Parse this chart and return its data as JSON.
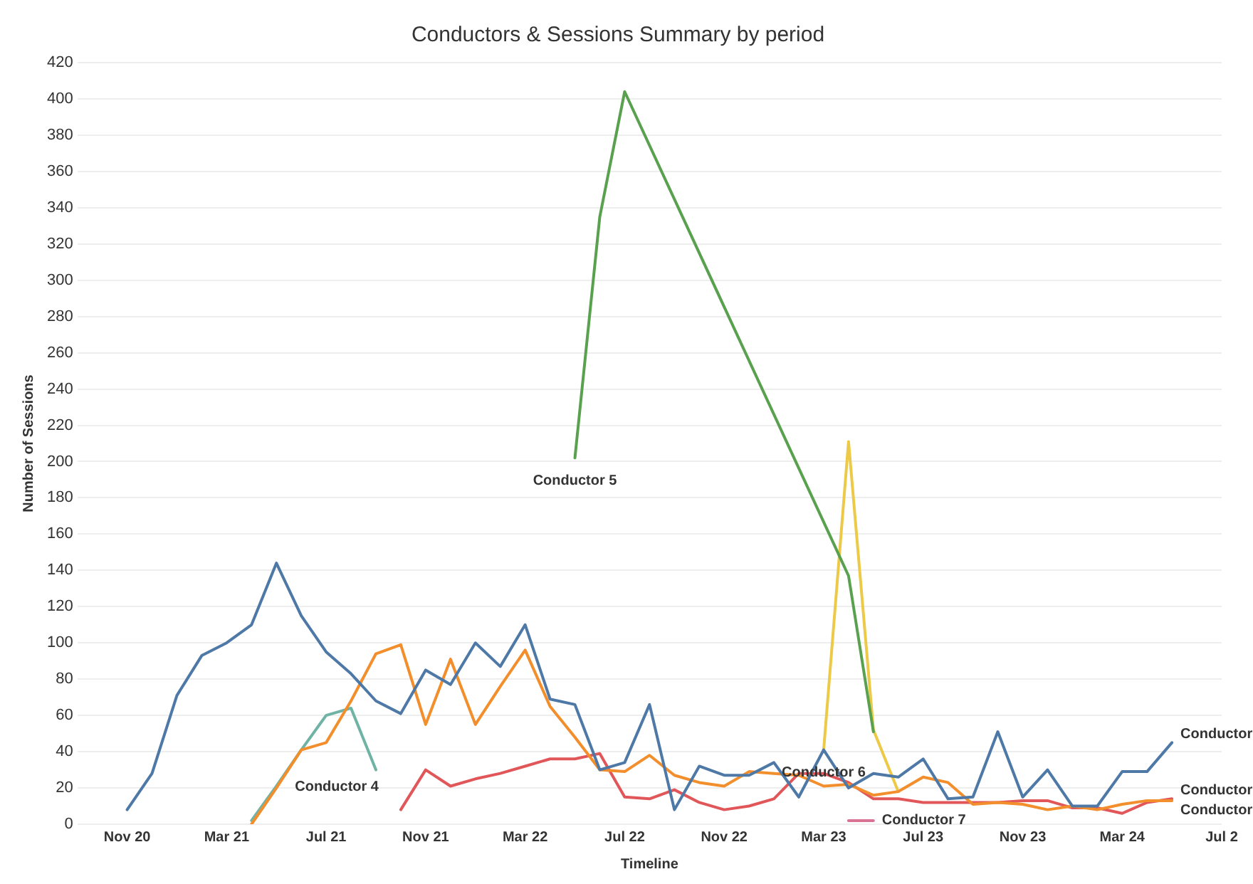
{
  "chart_data": {
    "type": "line",
    "title": "Conductors & Sessions Summary by period",
    "xlabel": "Timeline",
    "ylabel": "Number of Sessions",
    "x": [
      "2020-11",
      "2020-12",
      "2021-01",
      "2021-02",
      "2021-03",
      "2021-04",
      "2021-05",
      "2021-06",
      "2021-07",
      "2021-08",
      "2021-09",
      "2021-10",
      "2021-11",
      "2021-12",
      "2022-01",
      "2022-02",
      "2022-03",
      "2022-04",
      "2022-05",
      "2022-06",
      "2022-07",
      "2022-08",
      "2022-09",
      "2022-10",
      "2022-11",
      "2022-12",
      "2023-01",
      "2023-02",
      "2023-03",
      "2023-04",
      "2023-05",
      "2023-06",
      "2023-07",
      "2023-08",
      "2023-09",
      "2023-10",
      "2023-11",
      "2023-12",
      "2024-01",
      "2024-02",
      "2024-03",
      "2024-04",
      "2024-05"
    ],
    "series": [
      {
        "name": "Conductor",
        "color": "#4e79a7",
        "values": [
          8,
          28,
          71,
          93,
          100,
          110,
          144,
          115,
          95,
          83,
          68,
          61,
          85,
          77,
          100,
          87,
          110,
          69,
          66,
          30,
          34,
          66,
          8,
          32,
          27,
          27,
          34,
          15,
          41,
          20,
          28,
          26,
          36,
          14,
          15,
          51,
          15,
          30,
          10,
          10,
          29,
          29,
          45
        ]
      },
      {
        "name": "Conductor",
        "color": "#f28e2b",
        "values": [
          null,
          null,
          null,
          null,
          null,
          0,
          20,
          41,
          45,
          68,
          94,
          99,
          55,
          91,
          55,
          76,
          96,
          65,
          48,
          30,
          29,
          38,
          27,
          23,
          21,
          29,
          28,
          27,
          21,
          22,
          16,
          18,
          26,
          23,
          11,
          12,
          11,
          8,
          10,
          8,
          11,
          13,
          13
        ]
      },
      {
        "name": "Conductor 4",
        "color": "#6fb3a5",
        "values": [
          null,
          null,
          null,
          null,
          null,
          2,
          21,
          41,
          60,
          64,
          30,
          null,
          null,
          null,
          null,
          null,
          null,
          null,
          null,
          null,
          null,
          null,
          null,
          null,
          null,
          null,
          null,
          null,
          null,
          null,
          null,
          null,
          null,
          null,
          null,
          null,
          null,
          null,
          null,
          null,
          null,
          null,
          null
        ]
      },
      {
        "name": "Conductor",
        "color": "#e15759",
        "values": [
          null,
          null,
          null,
          null,
          null,
          null,
          null,
          null,
          null,
          null,
          null,
          8,
          30,
          21,
          25,
          28,
          32,
          36,
          36,
          39,
          15,
          14,
          19,
          12,
          8,
          10,
          14,
          28,
          28,
          23,
          14,
          14,
          12,
          12,
          12,
          12,
          13,
          13,
          9,
          9,
          6,
          12,
          14
        ]
      },
      {
        "name": "Conductor 5",
        "color": "#59a14f",
        "x": [
          "2022-05",
          "2022-06",
          "2022-07",
          "2023-04",
          "2023-05"
        ],
        "values": [
          202,
          335,
          404,
          137,
          51
        ]
      },
      {
        "name": "Conductor 6",
        "color": "#edc948",
        "values": [
          null,
          null,
          null,
          null,
          null,
          null,
          null,
          null,
          null,
          null,
          null,
          null,
          null,
          null,
          null,
          null,
          null,
          null,
          null,
          null,
          null,
          null,
          null,
          null,
          null,
          null,
          null,
          null,
          41,
          211,
          52,
          18,
          null,
          null,
          null,
          null,
          null,
          null,
          null,
          null,
          null,
          null,
          null
        ]
      },
      {
        "name": "Conductor 7",
        "color": "#d97394",
        "values": [
          null,
          null,
          null,
          null,
          null,
          null,
          null,
          null,
          null,
          null,
          null,
          null,
          null,
          null,
          null,
          null,
          null,
          null,
          null,
          null,
          null,
          null,
          null,
          null,
          null,
          null,
          null,
          null,
          null,
          2,
          2,
          null,
          null,
          null,
          null,
          null,
          null,
          null,
          null,
          null,
          null,
          null,
          null
        ]
      }
    ],
    "xlim": [
      "2020-09",
      "2024-07"
    ],
    "xticks": [
      {
        "value": "2020-11",
        "label": "Nov 20"
      },
      {
        "value": "2021-03",
        "label": "Mar 21"
      },
      {
        "value": "2021-07",
        "label": "Jul 21"
      },
      {
        "value": "2021-11",
        "label": "Nov 21"
      },
      {
        "value": "2022-03",
        "label": "Mar 22"
      },
      {
        "value": "2022-07",
        "label": "Jul 22"
      },
      {
        "value": "2022-11",
        "label": "Nov 22"
      },
      {
        "value": "2023-03",
        "label": "Mar 23"
      },
      {
        "value": "2023-07",
        "label": "Jul 23"
      },
      {
        "value": "2023-11",
        "label": "Nov 23"
      },
      {
        "value": "2024-03",
        "label": "Mar 24"
      },
      {
        "value": "2024-07",
        "label": "Jul 2"
      }
    ],
    "ylim": [
      0,
      420
    ],
    "yticks": [
      0,
      20,
      40,
      60,
      80,
      100,
      120,
      140,
      160,
      180,
      200,
      220,
      240,
      260,
      280,
      300,
      320,
      340,
      360,
      380,
      400,
      420
    ],
    "grid": "y",
    "legend": false,
    "marker": "none",
    "line_style": "solid"
  }
}
